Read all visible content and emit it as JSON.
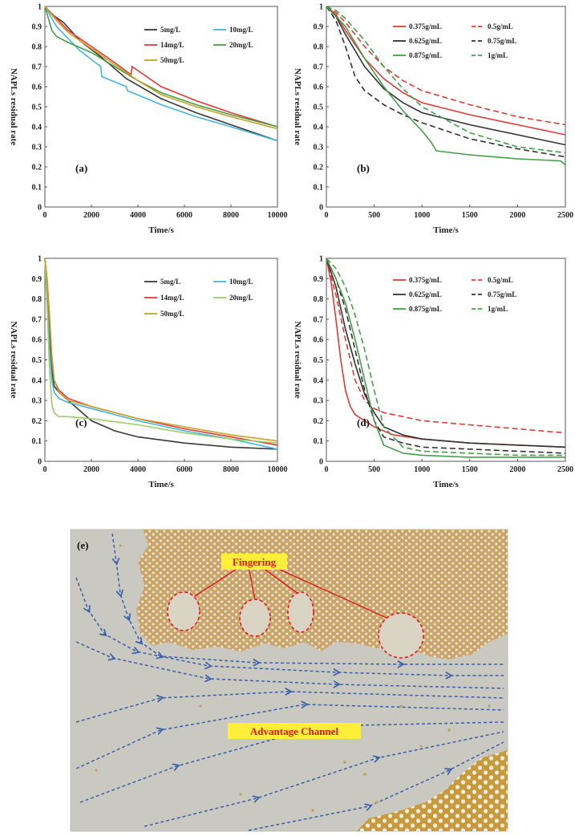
{
  "chart_data": [
    {
      "type": "line",
      "panel_label": "(a)",
      "xlabel": "Time/s",
      "ylabel": "NAPLs residual rate",
      "xlim": [
        0,
        10000
      ],
      "ylim": [
        0,
        1
      ],
      "xticks": [
        0,
        2000,
        4000,
        6000,
        8000,
        10000
      ],
      "yticks": [
        0,
        0.1,
        0.2,
        0.3,
        0.4,
        0.5,
        0.6,
        0.7,
        0.8,
        0.9,
        1
      ],
      "ytick_labels": [
        "0",
        "0.1",
        "0.2",
        "0.3",
        "0.4",
        "0.5",
        "0.6",
        "0.7",
        "0.8",
        "0.9",
        "1"
      ],
      "legend_position": "top-right",
      "grid": false,
      "series": [
        {
          "name": "5mg/L",
          "color": "#3a3a3a",
          "dashed": false,
          "x": [
            0,
            300,
            800,
            1500,
            2500,
            3500,
            5000,
            6500,
            8000,
            10000
          ],
          "y": [
            1,
            0.96,
            0.92,
            0.83,
            0.74,
            0.64,
            0.54,
            0.47,
            0.41,
            0.33
          ]
        },
        {
          "name": "10mg/L",
          "color": "#41b6e6",
          "dashed": false,
          "x": [
            0,
            500,
            1000,
            1500,
            2400,
            2450,
            3500,
            3550,
            5000,
            6500,
            8000,
            10000
          ],
          "y": [
            1,
            0.9,
            0.84,
            0.78,
            0.7,
            0.65,
            0.6,
            0.58,
            0.51,
            0.45,
            0.4,
            0.33
          ]
        },
        {
          "name": "14mg/L",
          "color": "#e53935",
          "dashed": false,
          "x": [
            0,
            500,
            1000,
            2000,
            3000,
            3700,
            3750,
            4000,
            5000,
            6500,
            8000,
            10000
          ],
          "y": [
            1,
            0.94,
            0.88,
            0.8,
            0.72,
            0.66,
            0.7,
            0.68,
            0.6,
            0.53,
            0.47,
            0.4
          ]
        },
        {
          "name": "20mg/L",
          "color": "#43a047",
          "dashed": false,
          "x": [
            0,
            300,
            500,
            1000,
            2000,
            3000,
            4000,
            5000,
            6500,
            8000,
            10000
          ],
          "y": [
            1,
            0.88,
            0.85,
            0.82,
            0.77,
            0.7,
            0.63,
            0.57,
            0.51,
            0.46,
            0.4
          ]
        },
        {
          "name": "50mg/L",
          "color": "#c9a227",
          "dashed": false,
          "x": [
            0,
            500,
            1000,
            2000,
            3000,
            4000,
            5000,
            6500,
            8000,
            10000
          ],
          "y": [
            1,
            0.93,
            0.87,
            0.79,
            0.71,
            0.63,
            0.56,
            0.5,
            0.45,
            0.39
          ]
        }
      ]
    },
    {
      "type": "line",
      "panel_label": "(b)",
      "xlabel": "Time/s",
      "ylabel": "NAPLs residual rate",
      "xlim": [
        0,
        2500
      ],
      "ylim": [
        0,
        1
      ],
      "xticks": [
        0,
        500,
        1000,
        1500,
        2000,
        2500
      ],
      "yticks": [
        0,
        0.1,
        0.2,
        0.3,
        0.4,
        0.5,
        0.6,
        0.7,
        0.8,
        0.9,
        1
      ],
      "ytick_labels": [
        "0",
        "0.1",
        "0.2",
        "0.3",
        "0.4",
        "0.5",
        "0.6",
        "0.7",
        "0.8",
        "0.9",
        "1"
      ],
      "legend_position": "top-right",
      "grid": false,
      "series": [
        {
          "name": "0.375g/mL",
          "color": "#e53935",
          "dashed": false,
          "x": [
            0,
            100,
            200,
            400,
            600,
            800,
            1000,
            1500,
            2000,
            2500
          ],
          "y": [
            1,
            0.96,
            0.88,
            0.74,
            0.64,
            0.57,
            0.52,
            0.46,
            0.41,
            0.36
          ]
        },
        {
          "name": "0.5g/mL",
          "color": "#e53935",
          "dashed": true,
          "x": [
            0,
            100,
            200,
            400,
            600,
            800,
            1000,
            1500,
            2000,
            2500
          ],
          "y": [
            1,
            0.97,
            0.92,
            0.8,
            0.7,
            0.63,
            0.58,
            0.51,
            0.45,
            0.41
          ]
        },
        {
          "name": "0.625g/mL",
          "color": "#333333",
          "dashed": false,
          "x": [
            0,
            100,
            200,
            400,
            600,
            800,
            1000,
            1500,
            2000,
            2500
          ],
          "y": [
            1,
            0.95,
            0.86,
            0.7,
            0.59,
            0.52,
            0.47,
            0.41,
            0.36,
            0.31
          ]
        },
        {
          "name": "0.75g/mL",
          "color": "#333333",
          "dashed": true,
          "x": [
            0,
            100,
            200,
            300,
            400,
            600,
            800,
            1000,
            1500,
            2000,
            2500
          ],
          "y": [
            1,
            0.93,
            0.8,
            0.65,
            0.58,
            0.51,
            0.46,
            0.42,
            0.34,
            0.29,
            0.25
          ]
        },
        {
          "name": "0.875g/mL",
          "color": "#43a047",
          "dashed": false,
          "x": [
            0,
            200,
            400,
            600,
            800,
            1000,
            1100,
            1150,
            1500,
            2000,
            2450,
            2500
          ],
          "y": [
            1,
            0.9,
            0.74,
            0.6,
            0.48,
            0.38,
            0.32,
            0.28,
            0.26,
            0.24,
            0.23,
            0.21
          ]
        },
        {
          "name": "1g/mL",
          "color": "#43a047",
          "dashed": true,
          "x": [
            0,
            100,
            200,
            400,
            600,
            800,
            1000,
            1500,
            2000,
            2500
          ],
          "y": [
            1,
            0.98,
            0.94,
            0.83,
            0.7,
            0.59,
            0.5,
            0.37,
            0.3,
            0.27
          ]
        }
      ]
    },
    {
      "type": "line",
      "panel_label": "(c)",
      "xlabel": "Time/s",
      "ylabel": "NAPLs residual rate",
      "xlim": [
        0,
        10000
      ],
      "ylim": [
        0,
        1
      ],
      "xticks": [
        0,
        2000,
        4000,
        6000,
        8000,
        10000
      ],
      "yticks": [
        0,
        0.1,
        0.2,
        0.3,
        0.4,
        0.5,
        0.6,
        0.7,
        0.8,
        0.9,
        1
      ],
      "ytick_labels": [
        "0",
        "0.1",
        "0.2",
        "0.3",
        "0.4",
        "0.5",
        "0.6",
        "0.7",
        "0.8",
        "0.9",
        "1"
      ],
      "legend_position": "top-right",
      "grid": false,
      "series": [
        {
          "name": "5mg/L",
          "color": "#3a3a3a",
          "dashed": false,
          "x": [
            0,
            100,
            200,
            300,
            400,
            600,
            1000,
            2000,
            3000,
            4000,
            6000,
            8000,
            10000
          ],
          "y": [
            1,
            0.85,
            0.62,
            0.45,
            0.37,
            0.34,
            0.3,
            0.2,
            0.15,
            0.12,
            0.09,
            0.07,
            0.06
          ]
        },
        {
          "name": "10mg/L",
          "color": "#41b6e6",
          "dashed": false,
          "x": [
            0,
            100,
            200,
            300,
            400,
            600,
            1000,
            2000,
            4000,
            6000,
            8000,
            10000
          ],
          "y": [
            1,
            0.8,
            0.55,
            0.4,
            0.34,
            0.31,
            0.29,
            0.26,
            0.2,
            0.15,
            0.11,
            0.06
          ]
        },
        {
          "name": "14mg/L",
          "color": "#e53935",
          "dashed": false,
          "x": [
            0,
            100,
            200,
            300,
            400,
            600,
            1000,
            2000,
            4000,
            6000,
            8000,
            10000
          ],
          "y": [
            1,
            0.88,
            0.7,
            0.5,
            0.4,
            0.35,
            0.31,
            0.27,
            0.21,
            0.16,
            0.12,
            0.08
          ]
        },
        {
          "name": "20mg/L",
          "color": "#9ccc65",
          "dashed": false,
          "x": [
            0,
            100,
            200,
            300,
            400,
            600,
            1000,
            2000,
            4000,
            6000,
            8000,
            10000
          ],
          "y": [
            1,
            0.75,
            0.45,
            0.28,
            0.24,
            0.22,
            0.22,
            0.21,
            0.18,
            0.14,
            0.11,
            0.09
          ]
        },
        {
          "name": "50mg/L",
          "color": "#c9a227",
          "dashed": false,
          "x": [
            0,
            100,
            200,
            300,
            400,
            600,
            1000,
            2000,
            4000,
            6000,
            8000,
            10000
          ],
          "y": [
            1,
            0.9,
            0.72,
            0.52,
            0.4,
            0.34,
            0.3,
            0.27,
            0.21,
            0.17,
            0.13,
            0.1
          ]
        }
      ]
    },
    {
      "type": "line",
      "panel_label": "(d)",
      "xlabel": "Time/s",
      "ylabel": "NAPLs residual rate",
      "xlim": [
        0,
        2500
      ],
      "ylim": [
        0,
        1
      ],
      "xticks": [
        0,
        500,
        1000,
        1500,
        2000,
        2500
      ],
      "yticks": [
        0,
        0.1,
        0.2,
        0.3,
        0.4,
        0.5,
        0.6,
        0.7,
        0.8,
        0.9,
        1
      ],
      "ytick_labels": [
        "0",
        "0.1",
        "0.2",
        "0.3",
        "0.4",
        "0.5",
        "0.6",
        "0.7",
        "0.8",
        "0.9",
        "1"
      ],
      "legend_position": "top-right",
      "grid": false,
      "series": [
        {
          "name": "0.375g/mL",
          "color": "#e53935",
          "dashed": false,
          "x": [
            0,
            50,
            100,
            150,
            200,
            250,
            300,
            400,
            500,
            700,
            1000,
            1500,
            2000,
            2500
          ],
          "y": [
            1,
            0.88,
            0.7,
            0.5,
            0.35,
            0.27,
            0.23,
            0.2,
            0.17,
            0.13,
            0.11,
            0.09,
            0.08,
            0.07
          ]
        },
        {
          "name": "0.5g/mL",
          "color": "#e53935",
          "dashed": true,
          "x": [
            0,
            100,
            200,
            300,
            400,
            500,
            600,
            800,
            1000,
            1500,
            2000,
            2500
          ],
          "y": [
            1,
            0.82,
            0.6,
            0.4,
            0.3,
            0.26,
            0.24,
            0.22,
            0.2,
            0.18,
            0.16,
            0.14
          ]
        },
        {
          "name": "0.625g/mL",
          "color": "#333333",
          "dashed": false,
          "x": [
            0,
            100,
            200,
            300,
            400,
            500,
            600,
            800,
            1000,
            1500,
            2000,
            2500
          ],
          "y": [
            1,
            0.86,
            0.65,
            0.48,
            0.33,
            0.24,
            0.17,
            0.13,
            0.11,
            0.09,
            0.08,
            0.07
          ]
        },
        {
          "name": "0.75g/mL",
          "color": "#333333",
          "dashed": true,
          "x": [
            0,
            100,
            200,
            300,
            400,
            500,
            600,
            800,
            1000,
            1500,
            2000,
            2500
          ],
          "y": [
            1,
            0.9,
            0.75,
            0.55,
            0.35,
            0.2,
            0.12,
            0.09,
            0.07,
            0.06,
            0.05,
            0.04
          ]
        },
        {
          "name": "0.875g/mL",
          "color": "#43a047",
          "dashed": false,
          "x": [
            0,
            100,
            200,
            300,
            400,
            500,
            600,
            800,
            1000,
            1500,
            2000,
            2500
          ],
          "y": [
            1,
            0.9,
            0.78,
            0.6,
            0.4,
            0.2,
            0.08,
            0.04,
            0.03,
            0.02,
            0.02,
            0.02
          ]
        },
        {
          "name": "1g/mL",
          "color": "#43a047",
          "dashed": true,
          "x": [
            0,
            100,
            200,
            300,
            400,
            500,
            600,
            800,
            1000,
            1500,
            2000,
            2500
          ],
          "y": [
            1,
            0.95,
            0.86,
            0.72,
            0.55,
            0.35,
            0.17,
            0.07,
            0.05,
            0.04,
            0.03,
            0.03
          ]
        }
      ]
    }
  ],
  "photo": {
    "panel_label": "(e)",
    "annotations": [
      "Fingering",
      "Advantage Channel"
    ],
    "colors": {
      "background": "#c9c9c1",
      "napl": "#c9a56b",
      "highlight_box": "#ffee3a",
      "callout": "#e11b1b",
      "flow_arrows": "#3b5fa8"
    }
  }
}
